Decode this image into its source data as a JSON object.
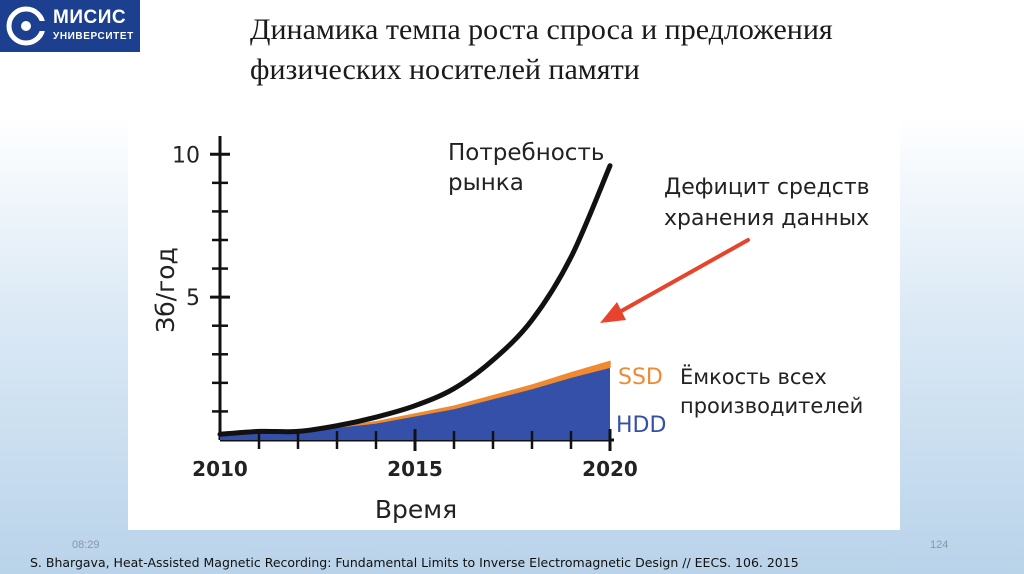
{
  "header": {
    "logo_name": "МИСИС",
    "logo_sub": "УНИВЕРСИТЕТ",
    "title_line1": "Динамика темпа роста спроса и предложения",
    "title_line2": "физических носителей памяти"
  },
  "footer": {
    "time": "08:29",
    "page_number": "124",
    "citation": "S. Bhargava, Heat-Assisted Magnetic Recording: Fundamental Limits to Inverse Electromagnetic Design // EECS. 106. 2015"
  },
  "colors": {
    "logo_bg": "#1c3f8f",
    "demand_line": "#111111",
    "hdd_fill": "#3550a8",
    "ssd_band": "#f08a30",
    "arrow": "#e8432c"
  },
  "chart_data": {
    "type": "area",
    "xlabel": "Время",
    "ylabel": "Зб/год",
    "xlim": [
      2010,
      2020
    ],
    "ylim": [
      0,
      10.5
    ],
    "x_ticks": [
      2010,
      2015,
      2020
    ],
    "y_ticks": [
      5,
      10
    ],
    "x_minor_step": 1,
    "y_minor_step": 1,
    "grid": false,
    "series": [
      {
        "name_lines": [
          "Потребность",
          "рынка"
        ],
        "kind": "line",
        "x": [
          2010,
          2011,
          2012,
          2013,
          2014,
          2015,
          2016,
          2017,
          2018,
          2019,
          2020
        ],
        "values": [
          0.2,
          0.3,
          0.3,
          0.5,
          0.8,
          1.2,
          1.8,
          2.8,
          4.2,
          6.4,
          9.6
        ]
      },
      {
        "name": "HDD",
        "kind": "area",
        "x": [
          2010,
          2011,
          2012,
          2013,
          2014,
          2015,
          2016,
          2017,
          2018,
          2019,
          2020
        ],
        "values": [
          0.15,
          0.3,
          0.35,
          0.45,
          0.6,
          0.85,
          1.1,
          1.45,
          1.8,
          2.2,
          2.55
        ]
      },
      {
        "name": "SSD",
        "kind": "band",
        "x": [
          2010,
          2011,
          2012,
          2013,
          2014,
          2015,
          2016,
          2017,
          2018,
          2019,
          2020
        ],
        "values": [
          0.0,
          0.0,
          0.0,
          0.02,
          0.04,
          0.06,
          0.08,
          0.1,
          0.12,
          0.15,
          0.2
        ]
      }
    ],
    "annotations": {
      "deficit_lines": [
        "Дефицит средств",
        "хранения данных"
      ],
      "capacity_lines": [
        "Ёмкость всех",
        "производителей"
      ]
    }
  }
}
